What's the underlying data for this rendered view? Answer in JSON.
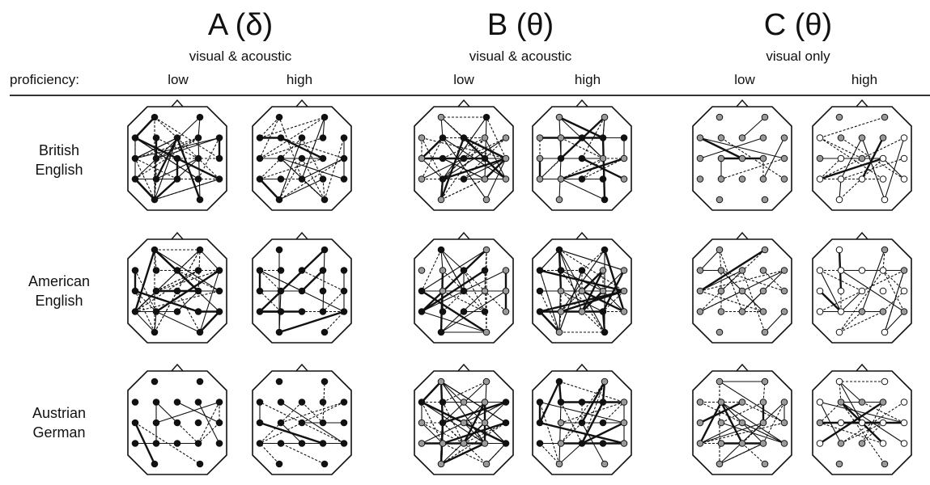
{
  "header": {
    "proficiency_label": "proficiency:",
    "columns": [
      {
        "title": "A (δ)",
        "subtitle": "visual & acoustic",
        "low": "low",
        "high": "high"
      },
      {
        "title": "B (θ)",
        "subtitle": "visual & acoustic",
        "low": "low",
        "high": "high"
      },
      {
        "title": "C (θ)",
        "subtitle": "visual only",
        "low": "low",
        "high": "high"
      }
    ]
  },
  "rows": [
    {
      "line1": "British",
      "line2": "English"
    },
    {
      "line1": "American",
      "line2": "English"
    },
    {
      "line1": "Austrian",
      "line2": "German"
    }
  ],
  "colors": {
    "ink": "#111111",
    "node_black": "#111111",
    "node_gray": "#9a9a9a",
    "node_white": "#ffffff"
  }
}
